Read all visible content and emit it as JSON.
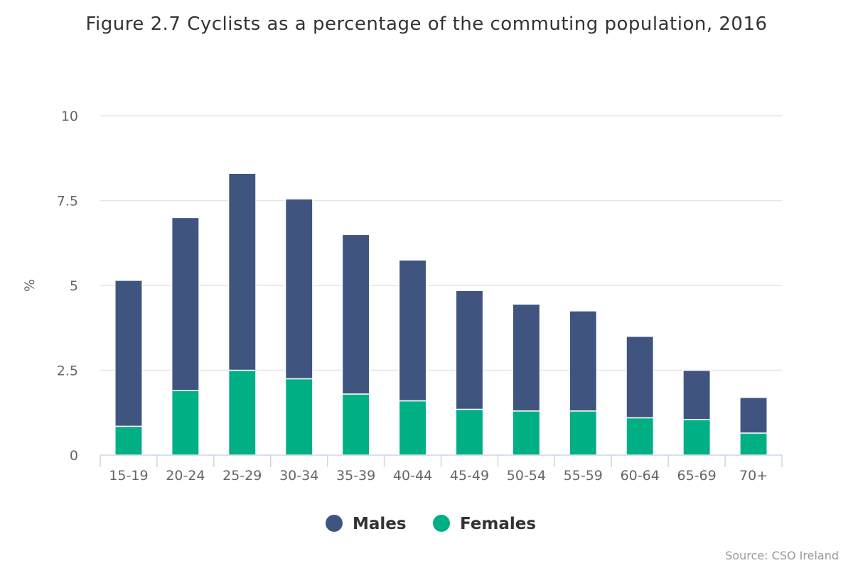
{
  "chart_data": {
    "type": "bar",
    "stacked": true,
    "title": "Figure 2.7 Cyclists as a percentage of the commuting population, 2016",
    "xlabel": "",
    "ylabel": "%",
    "ylim": [
      0,
      10
    ],
    "yticks": [
      "0",
      "2.5",
      "5",
      "7.5",
      "10"
    ],
    "yticks_values": [
      0,
      2.5,
      5,
      7.5,
      10
    ],
    "grid": true,
    "legend_position": "bottom",
    "categories": [
      "15-19",
      "20-24",
      "25-29",
      "30-34",
      "35-39",
      "40-44",
      "45-49",
      "50-54",
      "55-59",
      "60-64",
      "65-69",
      "70+"
    ],
    "series": [
      {
        "name": "Males",
        "color": "#3f5580",
        "values": [
          4.3,
          5.1,
          5.8,
          5.3,
          4.7,
          4.15,
          3.5,
          3.15,
          2.95,
          2.4,
          1.45,
          1.05
        ]
      },
      {
        "name": "Females",
        "color": "#00af84",
        "values": [
          0.85,
          1.9,
          2.5,
          2.25,
          1.8,
          1.6,
          1.35,
          1.3,
          1.3,
          1.1,
          1.05,
          0.65
        ]
      }
    ],
    "credit": "Source: CSO Ireland"
  }
}
